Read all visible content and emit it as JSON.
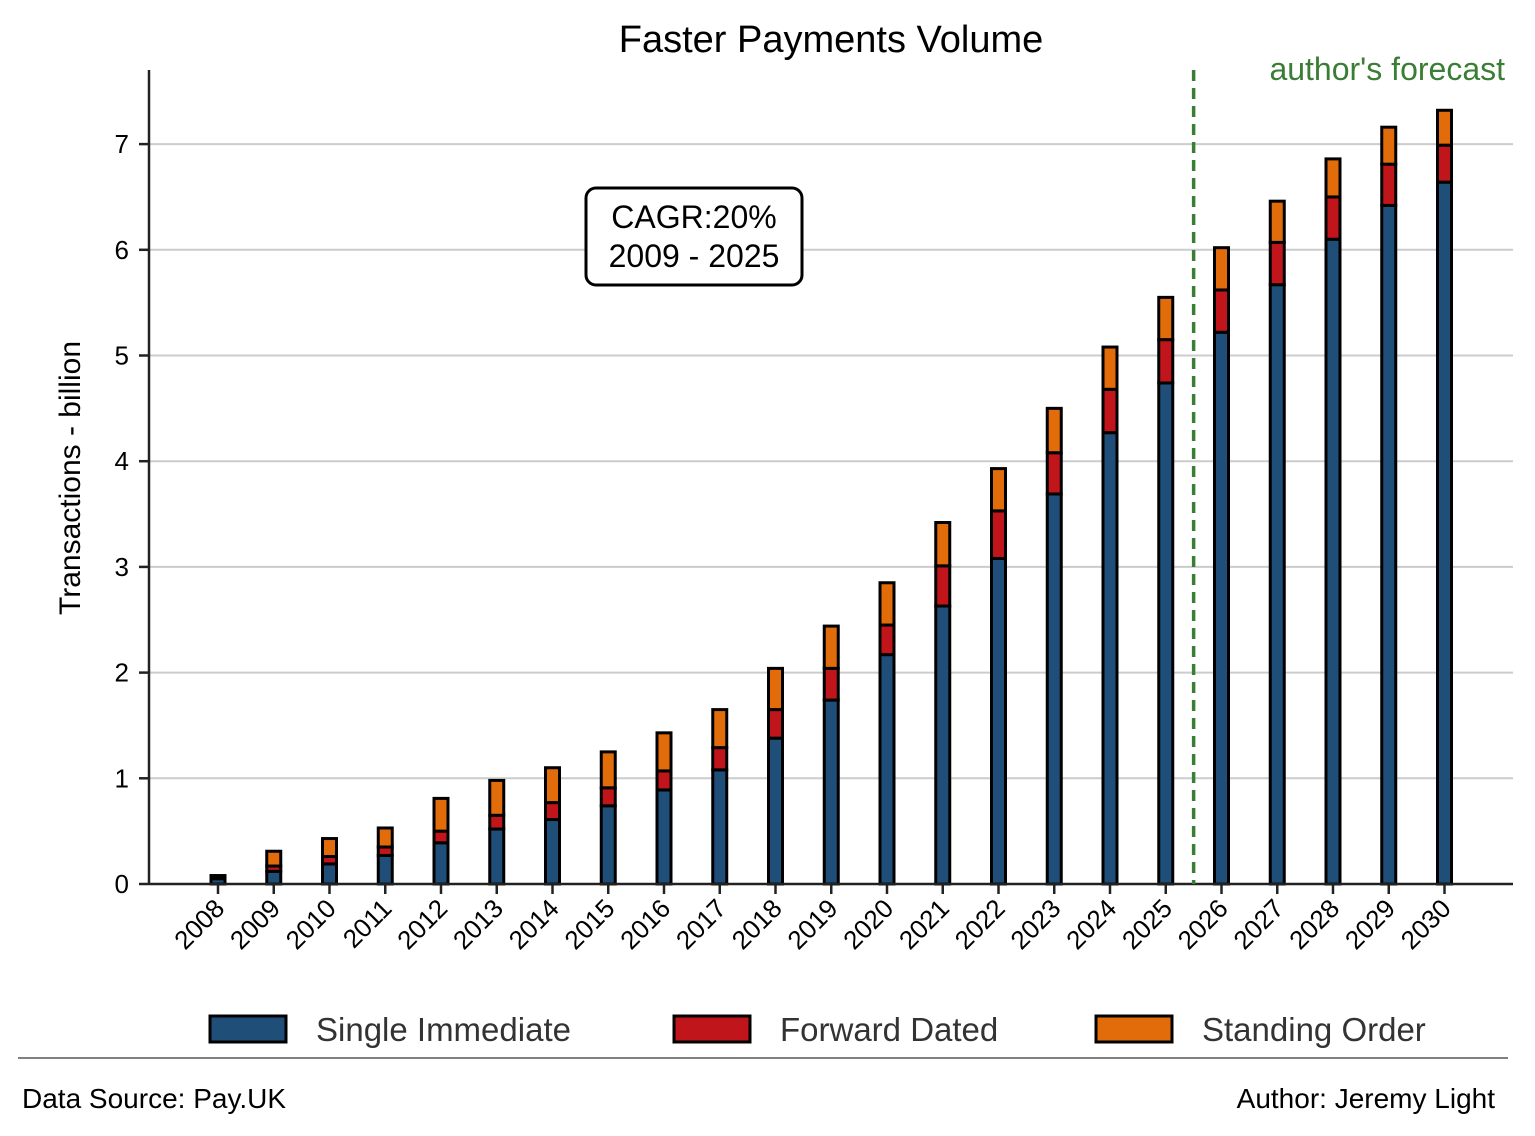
{
  "chart_data": {
    "type": "bar",
    "stacked": true,
    "title": "Faster Payments Volume",
    "xlabel": "",
    "ylabel": "Transactions - billion",
    "ylim": [
      0,
      7.7
    ],
    "yticks": [
      "0",
      "1",
      "2",
      "3",
      "4",
      "5",
      "6",
      "7"
    ],
    "grid": "horizontal",
    "legend_position": "bottom",
    "categories": [
      "2008",
      "2009",
      "2010",
      "2011",
      "2012",
      "2013",
      "2014",
      "2015",
      "2016",
      "2017",
      "2018",
      "2019",
      "2020",
      "2021",
      "2022",
      "2023",
      "2024",
      "2025",
      "2026",
      "2027",
      "2028",
      "2029",
      "2030"
    ],
    "series": [
      {
        "name": "Single Immediate",
        "color": "#1f4e79",
        "values": [
          0.05,
          0.12,
          0.19,
          0.27,
          0.39,
          0.52,
          0.61,
          0.74,
          0.89,
          1.08,
          1.38,
          1.74,
          2.17,
          2.63,
          3.08,
          3.69,
          4.27,
          4.74,
          5.22,
          5.67,
          6.1,
          6.42,
          6.64
        ]
      },
      {
        "name": "Forward Dated",
        "color": "#c0161b",
        "values": [
          0.01,
          0.05,
          0.07,
          0.08,
          0.11,
          0.13,
          0.16,
          0.17,
          0.18,
          0.21,
          0.27,
          0.3,
          0.28,
          0.38,
          0.45,
          0.39,
          0.41,
          0.41,
          0.4,
          0.4,
          0.4,
          0.39,
          0.35
        ]
      },
      {
        "name": "Standing Order",
        "color": "#e36c0a",
        "values": [
          0.02,
          0.14,
          0.17,
          0.18,
          0.31,
          0.33,
          0.33,
          0.34,
          0.36,
          0.36,
          0.39,
          0.4,
          0.4,
          0.41,
          0.4,
          0.42,
          0.4,
          0.4,
          0.4,
          0.39,
          0.36,
          0.35,
          0.33
        ]
      }
    ],
    "forecast_line_between": [
      "2025",
      "2026"
    ],
    "forecast_label": "author's forecast",
    "forecast_color": "#3a7d34",
    "annotation": {
      "line1": "CAGR:20%",
      "line2": "2009 - 2025"
    }
  },
  "footer": {
    "source": "Data Source: Pay.UK",
    "author": "Author: Jeremy Light"
  }
}
